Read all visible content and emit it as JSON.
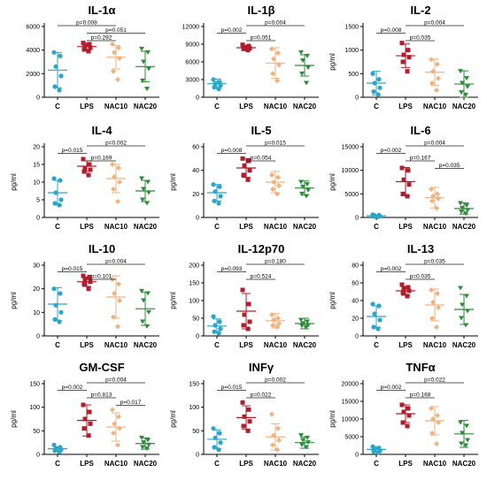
{
  "colors": {
    "C": "#2aa6c8",
    "LPS": "#b01e2e",
    "NAC10": "#f2b27d",
    "NAC20": "#2e8b3a",
    "axis": "#000000",
    "bracket": "#222222"
  },
  "chart_data": [
    {
      "type": "scatter",
      "title": "IL-1α",
      "ylabel": "",
      "ylim": [
        0,
        6000
      ],
      "yticks": [
        "0",
        "2000",
        "4000",
        "6000"
      ],
      "categories": [
        "C",
        "LPS",
        "NAC10",
        "NAC20"
      ],
      "points": [
        [
          3800,
          3500,
          2600,
          1800,
          900,
          600
        ],
        [
          4600,
          4500,
          4350,
          4200,
          4050,
          3900
        ],
        [
          4500,
          4200,
          3800,
          3300,
          2200,
          1500
        ],
        [
          4100,
          3800,
          3000,
          2400,
          1400,
          700
        ]
      ],
      "mean": [
        2300,
        4300,
        3400,
        2600
      ],
      "sd": [
        1500,
        300,
        1000,
        1300
      ],
      "pvalues": [
        {
          "from": 0,
          "to": 2,
          "label": "p=0.008"
        },
        {
          "from": 1,
          "to": 2,
          "label": "p=0.292"
        },
        {
          "from": 1,
          "to": 3,
          "label": "p=0.051"
        }
      ]
    },
    {
      "type": "scatter",
      "title": "IL-1β",
      "ylabel": "",
      "ylim": [
        0,
        12000
      ],
      "yticks": [
        "0",
        "3000",
        "6000",
        "9000",
        "12000"
      ],
      "categories": [
        "C",
        "LPS",
        "NAC10",
        "NAC20"
      ],
      "points": [
        [
          3000,
          2600,
          2300,
          2000,
          1700,
          1400
        ],
        [
          8900,
          8700,
          8500,
          8300,
          8200,
          8000
        ],
        [
          8200,
          7500,
          6500,
          5500,
          4000,
          2800
        ],
        [
          7600,
          7000,
          6200,
          5000,
          4000,
          2400
        ]
      ],
      "mean": [
        2300,
        8400,
        5800,
        5400
      ],
      "sd": [
        800,
        400,
        2600,
        1800
      ],
      "pvalues": [
        {
          "from": 0,
          "to": 1,
          "label": "p=0.002"
        },
        {
          "from": 1,
          "to": 2,
          "label": "p=0.051"
        },
        {
          "from": 1,
          "to": 3,
          "label": "p=0.004"
        }
      ]
    },
    {
      "type": "scatter",
      "title": "IL-2",
      "ylabel": "pg/ml",
      "ylim": [
        0,
        1500
      ],
      "yticks": [
        "0",
        "500",
        "1000",
        "1500"
      ],
      "categories": [
        "C",
        "LPS",
        "NAC10",
        "NAC20"
      ],
      "points": [
        [
          500,
          380,
          300,
          200,
          120,
          60
        ],
        [
          1150,
          1000,
          900,
          850,
          750,
          550
        ],
        [
          800,
          700,
          550,
          400,
          300,
          150
        ],
        [
          550,
          400,
          300,
          220,
          100,
          50
        ]
      ],
      "mean": [
        300,
        880,
        530,
        280
      ],
      "sd": [
        250,
        250,
        280,
        280
      ],
      "pvalues": [
        {
          "from": 0,
          "to": 1,
          "label": "p=0.008"
        },
        {
          "from": 1,
          "to": 2,
          "label": "p=0.035"
        },
        {
          "from": 1,
          "to": 3,
          "label": "p=0.004"
        }
      ]
    },
    {
      "type": "scatter",
      "title": "IL-4",
      "ylabel": "pg/ml",
      "ylim": [
        0,
        20
      ],
      "yticks": [
        "0",
        "5",
        "10",
        "15",
        "20"
      ],
      "categories": [
        "C",
        "LPS",
        "NAC10",
        "NAC20"
      ],
      "points": [
        [
          11,
          10.5,
          7,
          5,
          4,
          3.5
        ],
        [
          16.5,
          15,
          14,
          13.5,
          13,
          12
        ],
        [
          15,
          14,
          11.5,
          10,
          8,
          4.5
        ],
        [
          11,
          10,
          8,
          7,
          5,
          4
        ]
      ],
      "mean": [
        7,
        14.5,
        11,
        7.5
      ],
      "sd": [
        3.5,
        1.5,
        4,
        3
      ],
      "pvalues": [
        {
          "from": 0,
          "to": 1,
          "label": "p=0.015"
        },
        {
          "from": 1,
          "to": 2,
          "label": "p=0.169"
        },
        {
          "from": 1,
          "to": 3,
          "label": "p=0.002"
        }
      ]
    },
    {
      "type": "scatter",
      "title": "IL-5",
      "ylabel": "pg/ml",
      "ylim": [
        0,
        60
      ],
      "yticks": [
        "0",
        "20",
        "40",
        "60"
      ],
      "categories": [
        "C",
        "LPS",
        "NAC10",
        "NAC20"
      ],
      "points": [
        [
          28,
          26,
          22,
          18,
          14,
          12
        ],
        [
          50,
          48,
          44,
          40,
          36,
          32
        ],
        [
          36,
          34,
          30,
          27,
          24,
          20
        ],
        [
          30,
          28,
          26,
          23,
          20,
          18
        ]
      ],
      "mean": [
        21,
        42,
        30,
        25
      ],
      "sd": [
        7,
        8,
        9,
        6
      ],
      "pvalues": [
        {
          "from": 0,
          "to": 1,
          "label": "p=0.008"
        },
        {
          "from": 1,
          "to": 2,
          "label": "p=0.054"
        },
        {
          "from": 1,
          "to": 3,
          "label": "p=0.015"
        }
      ]
    },
    {
      "type": "scatter",
      "title": "IL-6",
      "ylabel": "pg/ml",
      "ylim": [
        0,
        15000
      ],
      "yticks": [
        "0",
        "5000",
        "10000",
        "15000"
      ],
      "categories": [
        "C",
        "LPS",
        "NAC10",
        "NAC20"
      ],
      "points": [
        [
          600,
          500,
          400,
          300,
          200,
          150
        ],
        [
          10500,
          10000,
          8000,
          7000,
          5000,
          4500
        ],
        [
          6000,
          5000,
          4500,
          4000,
          3500,
          2000
        ],
        [
          3000,
          2500,
          2000,
          1500,
          1200,
          800
        ]
      ],
      "mean": [
        350,
        7600,
        4200,
        1900
      ],
      "sd": [
        200,
        3000,
        2200,
        1200
      ],
      "pvalues": [
        {
          "from": 0,
          "to": 1,
          "label": "p=0.002"
        },
        {
          "from": 1,
          "to": 2,
          "label": "p=0.167"
        },
        {
          "from": 2,
          "to": 3,
          "label": "p=0.035"
        },
        {
          "from": 1,
          "to": 3,
          "label": "p=0.004"
        }
      ]
    },
    {
      "type": "scatter",
      "title": "IL-10",
      "ylabel": "pg/ml",
      "ylim": [
        0,
        30
      ],
      "yticks": [
        "0",
        "10",
        "20",
        "30"
      ],
      "categories": [
        "C",
        "LPS",
        "NAC10",
        "NAC20"
      ],
      "points": [
        [
          20,
          18,
          13,
          10,
          7,
          6
        ],
        [
          25.5,
          25,
          24,
          23,
          22,
          20
        ],
        [
          24,
          22,
          18,
          15,
          8,
          4
        ],
        [
          19,
          18,
          15,
          10,
          6,
          4
        ]
      ],
      "mean": [
        13.5,
        23,
        16.5,
        11.5
      ],
      "sd": [
        7,
        2,
        9,
        7
      ],
      "pvalues": [
        {
          "from": 0,
          "to": 1,
          "label": "p=0.015"
        },
        {
          "from": 1,
          "to": 2,
          "label": "p=0.101"
        },
        {
          "from": 1,
          "to": 3,
          "label": "p=0.004"
        }
      ]
    },
    {
      "type": "scatter",
      "title": "IL-12p70",
      "ylabel": "pg/ml",
      "ylim": [
        0,
        200
      ],
      "yticks": [
        "0",
        "50",
        "100",
        "150",
        "200"
      ],
      "categories": [
        "C",
        "LPS",
        "NAC10",
        "NAC20"
      ],
      "points": [
        [
          55,
          40,
          30,
          20,
          12,
          8
        ],
        [
          130,
          90,
          60,
          40,
          30,
          20
        ],
        [
          60,
          50,
          45,
          35,
          30,
          25
        ],
        [
          45,
          40,
          35,
          30,
          28,
          25
        ]
      ],
      "mean": [
        28,
        70,
        43,
        35
      ],
      "sd": [
        20,
        50,
        20,
        15
      ],
      "pvalues": [
        {
          "from": 0,
          "to": 1,
          "label": "p=0.093"
        },
        {
          "from": 1,
          "to": 2,
          "label": "p=0.524"
        },
        {
          "from": 1,
          "to": 3,
          "label": "p=0.180"
        }
      ]
    },
    {
      "type": "scatter",
      "title": "IL-13",
      "ylabel": "pg/ml",
      "ylim": [
        0,
        80
      ],
      "yticks": [
        "0",
        "20",
        "40",
        "60",
        "80"
      ],
      "categories": [
        "C",
        "LPS",
        "NAC10",
        "NAC20"
      ],
      "points": [
        [
          36,
          34,
          25,
          18,
          10,
          8
        ],
        [
          58,
          55,
          53,
          51,
          49,
          45
        ],
        [
          52,
          48,
          38,
          32,
          20,
          10
        ],
        [
          54,
          45,
          35,
          28,
          20,
          12
        ]
      ],
      "mean": [
        22,
        51,
        35,
        30
      ],
      "sd": [
        12,
        5,
        18,
        17
      ],
      "pvalues": [
        {
          "from": 0,
          "to": 1,
          "label": "p=0.002"
        },
        {
          "from": 1,
          "to": 2,
          "label": "p=0.035"
        },
        {
          "from": 1,
          "to": 3,
          "label": "p=0.035"
        }
      ]
    },
    {
      "type": "scatter",
      "title": "GM-CSF",
      "ylabel": "pg/ml",
      "ylim": [
        0,
        150
      ],
      "yticks": [
        "0",
        "50",
        "100",
        "150"
      ],
      "categories": [
        "C",
        "LPS",
        "NAC10",
        "NAC20"
      ],
      "points": [
        [
          20,
          15,
          12,
          10,
          8,
          5
        ],
        [
          105,
          90,
          75,
          65,
          55,
          40
        ],
        [
          95,
          80,
          65,
          55,
          45,
          20
        ],
        [
          35,
          30,
          25,
          20,
          15,
          12
        ]
      ],
      "mean": [
        12,
        72,
        58,
        23
      ],
      "sd": [
        4,
        33,
        30,
        12
      ],
      "pvalues": [
        {
          "from": 0,
          "to": 1,
          "label": "p=0.002"
        },
        {
          "from": 1,
          "to": 2,
          "label": "p=0.813"
        },
        {
          "from": 2,
          "to": 3,
          "label": "p=0.017"
        },
        {
          "from": 1,
          "to": 3,
          "label": "p=0.004"
        }
      ]
    },
    {
      "type": "scatter",
      "title": "INFγ",
      "ylabel": "pg/ml",
      "ylim": [
        0,
        150
      ],
      "yticks": [
        "0",
        "50",
        "100",
        "150"
      ],
      "categories": [
        "C",
        "LPS",
        "NAC10",
        "NAC20"
      ],
      "points": [
        [
          55,
          45,
          35,
          25,
          15,
          10
        ],
        [
          110,
          95,
          80,
          70,
          60,
          50
        ],
        [
          85,
          55,
          40,
          30,
          20,
          10
        ],
        [
          40,
          35,
          30,
          25,
          20,
          15
        ]
      ],
      "mean": [
        32,
        78,
        37,
        25
      ],
      "sd": [
        20,
        25,
        28,
        12
      ],
      "pvalues": [
        {
          "from": 0,
          "to": 1,
          "label": "p=0.015"
        },
        {
          "from": 1,
          "to": 2,
          "label": "p=0.022"
        },
        {
          "from": 1,
          "to": 3,
          "label": "p=0.002"
        }
      ]
    },
    {
      "type": "scatter",
      "title": "TNFα",
      "ylabel": "pg/ml",
      "ylim": [
        0,
        20000
      ],
      "yticks": [
        "0",
        "5000",
        "10000",
        "15000",
        "20000"
      ],
      "categories": [
        "C",
        "LPS",
        "NAC10",
        "NAC20"
      ],
      "points": [
        [
          2200,
          1800,
          1400,
          1000,
          800,
          500
        ],
        [
          14000,
          13000,
          12000,
          11000,
          9000,
          8000
        ],
        [
          13000,
          11000,
          10000,
          9000,
          6000,
          3000
        ],
        [
          9000,
          8000,
          6000,
          4000,
          3000,
          2500
        ]
      ],
      "mean": [
        1400,
        11500,
        9500,
        5800
      ],
      "sd": [
        800,
        2500,
        4000,
        3800
      ],
      "pvalues": [
        {
          "from": 0,
          "to": 1,
          "label": "p=0.002"
        },
        {
          "from": 1,
          "to": 2,
          "label": "p=0.168"
        },
        {
          "from": 1,
          "to": 3,
          "label": "p=0.022"
        }
      ]
    }
  ]
}
